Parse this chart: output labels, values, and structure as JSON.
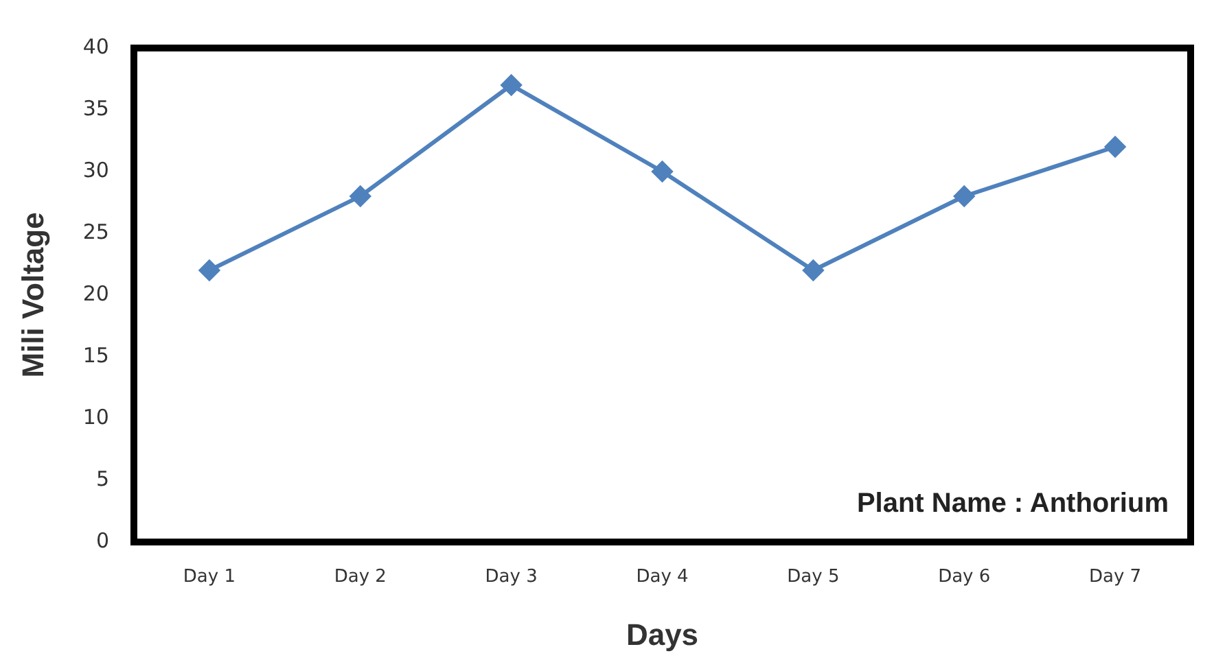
{
  "chart_data": {
    "type": "line",
    "xlabel": "Days",
    "ylabel": "Mili Voltage",
    "categories": [
      "Day 1",
      "Day 2",
      "Day 3",
      "Day 4",
      "Day 5",
      "Day 6",
      "Day 7"
    ],
    "series": [
      {
        "color": "#4f81bd",
        "values": [
          22,
          28,
          37,
          30,
          22,
          28,
          32
        ]
      }
    ],
    "ylim": [
      0,
      40
    ],
    "yticks": [
      0,
      5,
      10,
      15,
      20,
      25,
      30,
      35,
      40
    ],
    "grid": false,
    "legend": false,
    "marker": "diamond",
    "line_style": "solid",
    "annotations": [
      "Plant Name : Anthorium"
    ]
  }
}
